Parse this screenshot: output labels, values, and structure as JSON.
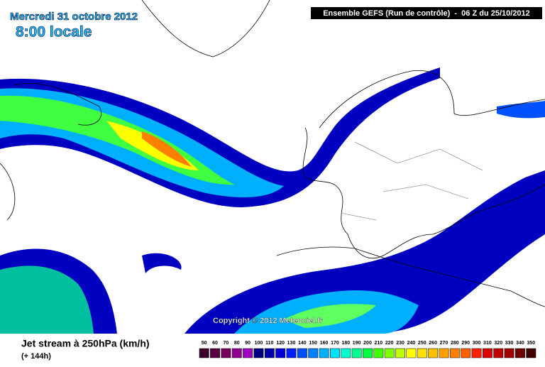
{
  "header": {
    "date": "Mercredi 31 octobre 2012",
    "time": "8:00 locale",
    "run": "Ensemble GEFS (Run de contrôle)  -  06 Z du 25/10/2012"
  },
  "map": {
    "copyright": "Copyright © 2012 Meteociel.fr"
  },
  "legend": {
    "title": "Jet stream à 250hPa (km/h)",
    "subtitle": "(+ 144h)",
    "labels": [
      50,
      60,
      70,
      80,
      90,
      100,
      110,
      120,
      130,
      140,
      150,
      160,
      170,
      180,
      190,
      200,
      210,
      220,
      230,
      240,
      250,
      260,
      270,
      280,
      290,
      300,
      310,
      320,
      330,
      340,
      350
    ],
    "colors": [
      "#3c0028",
      "#5a0040",
      "#780060",
      "#900090",
      "#a000c0",
      "#000080",
      "#0000a8",
      "#0000d8",
      "#0020ff",
      "#0050ff",
      "#0080ff",
      "#00b0ff",
      "#00e0ff",
      "#00ffd0",
      "#00ff90",
      "#00ff40",
      "#40ff00",
      "#80ff00",
      "#c0ff00",
      "#ffff00",
      "#ffe000",
      "#ffc000",
      "#ffa000",
      "#ff8000",
      "#ff6000",
      "#ff2000",
      "#e00000",
      "#c00000",
      "#a00000",
      "#700000",
      "#400000"
    ]
  }
}
